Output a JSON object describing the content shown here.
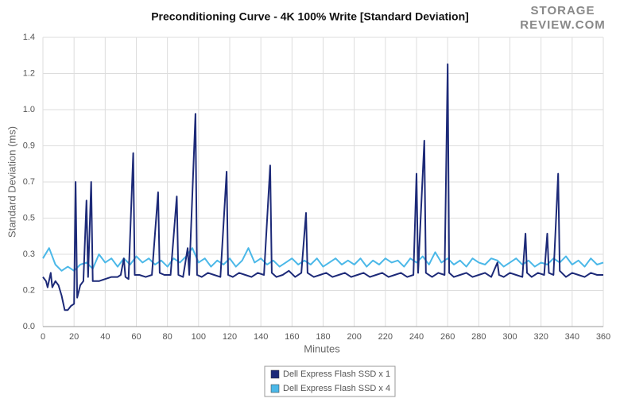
{
  "chart_data": {
    "type": "line",
    "title": "Preconditioning Curve - 4K 100% Write [Standard Deviation]",
    "logo": [
      "STORAGE",
      "REVIEW.COM"
    ],
    "x_label": "Minutes",
    "y_label": "Standard Deviation (ms)",
    "xlim": [
      0,
      360
    ],
    "xticks": [
      0,
      20,
      40,
      60,
      80,
      100,
      120,
      140,
      160,
      180,
      200,
      220,
      240,
      260,
      280,
      300,
      320,
      340,
      360
    ],
    "ylim": [
      0,
      1.4
    ],
    "yticks": [
      {
        "value": 0,
        "label": "0.0"
      },
      {
        "value": 0.175,
        "label": "0.2"
      },
      {
        "value": 0.35,
        "label": "0.3"
      },
      {
        "value": 0.525,
        "label": "0.5"
      },
      {
        "value": 0.7,
        "label": "0.7"
      },
      {
        "value": 0.875,
        "label": "0.9"
      },
      {
        "value": 1.05,
        "label": "1.0"
      },
      {
        "value": 1.225,
        "label": "1.2"
      },
      {
        "value": 1.4,
        "label": "1.4"
      }
    ],
    "grid": true,
    "legend": "bottom",
    "series": [
      {
        "name": "Dell Express Flash SSD x 1",
        "color": "#1d2a78",
        "x": [
          0,
          2,
          3,
          5,
          6,
          8,
          10,
          12,
          14,
          16,
          18,
          20,
          21,
          22,
          24,
          26,
          28,
          29,
          31,
          32,
          36,
          40,
          44,
          48,
          50,
          52,
          53,
          55,
          58,
          59,
          62,
          66,
          70,
          74,
          75,
          78,
          82,
          86,
          87,
          90,
          93,
          94,
          98,
          99,
          102,
          106,
          110,
          114,
          118,
          119,
          122,
          126,
          130,
          134,
          138,
          142,
          146,
          147,
          150,
          154,
          158,
          162,
          166,
          169,
          170,
          174,
          178,
          182,
          186,
          190,
          194,
          198,
          202,
          206,
          210,
          214,
          218,
          222,
          226,
          230,
          234,
          238,
          240,
          241,
          245,
          246,
          250,
          254,
          258,
          260,
          261,
          264,
          268,
          272,
          276,
          280,
          284,
          288,
          292,
          293,
          296,
          300,
          304,
          308,
          310,
          311,
          314,
          318,
          322,
          324,
          325,
          328,
          331,
          332,
          336,
          340,
          344,
          348,
          352,
          356,
          360
        ],
        "values": [
          0.24,
          0.22,
          0.19,
          0.26,
          0.19,
          0.22,
          0.2,
          0.15,
          0.08,
          0.08,
          0.1,
          0.11,
          0.7,
          0.14,
          0.2,
          0.22,
          0.61,
          0.24,
          0.7,
          0.22,
          0.22,
          0.23,
          0.24,
          0.24,
          0.25,
          0.33,
          0.24,
          0.23,
          0.84,
          0.25,
          0.25,
          0.24,
          0.25,
          0.65,
          0.26,
          0.25,
          0.25,
          0.63,
          0.25,
          0.24,
          0.38,
          0.25,
          1.03,
          0.25,
          0.24,
          0.26,
          0.25,
          0.24,
          0.75,
          0.25,
          0.24,
          0.26,
          0.25,
          0.24,
          0.26,
          0.25,
          0.78,
          0.26,
          0.24,
          0.25,
          0.27,
          0.24,
          0.26,
          0.55,
          0.26,
          0.24,
          0.25,
          0.26,
          0.24,
          0.25,
          0.26,
          0.24,
          0.25,
          0.26,
          0.24,
          0.25,
          0.26,
          0.24,
          0.25,
          0.26,
          0.24,
          0.25,
          0.74,
          0.26,
          0.9,
          0.26,
          0.24,
          0.26,
          0.25,
          1.27,
          0.26,
          0.24,
          0.25,
          0.26,
          0.24,
          0.25,
          0.26,
          0.24,
          0.31,
          0.25,
          0.24,
          0.26,
          0.25,
          0.24,
          0.45,
          0.26,
          0.24,
          0.26,
          0.25,
          0.45,
          0.26,
          0.25,
          0.74,
          0.27,
          0.24,
          0.26,
          0.25,
          0.24,
          0.26,
          0.25,
          0.25
        ]
      },
      {
        "name": "Dell Express Flash SSD x 4",
        "color": "#4bb8e8",
        "x": [
          0,
          4,
          8,
          12,
          16,
          20,
          24,
          28,
          32,
          36,
          40,
          44,
          48,
          52,
          56,
          60,
          64,
          68,
          72,
          76,
          80,
          84,
          88,
          92,
          96,
          100,
          104,
          108,
          112,
          116,
          120,
          124,
          128,
          132,
          136,
          140,
          144,
          148,
          152,
          156,
          160,
          164,
          168,
          172,
          176,
          180,
          184,
          188,
          192,
          196,
          200,
          204,
          208,
          212,
          216,
          220,
          224,
          228,
          232,
          236,
          240,
          244,
          248,
          252,
          256,
          260,
          264,
          268,
          272,
          276,
          280,
          284,
          288,
          292,
          296,
          300,
          304,
          308,
          312,
          316,
          320,
          324,
          328,
          332,
          336,
          340,
          344,
          348,
          352,
          356,
          360
        ],
        "values": [
          0.33,
          0.38,
          0.3,
          0.27,
          0.29,
          0.27,
          0.3,
          0.31,
          0.28,
          0.35,
          0.31,
          0.33,
          0.29,
          0.33,
          0.3,
          0.34,
          0.31,
          0.33,
          0.3,
          0.32,
          0.29,
          0.33,
          0.31,
          0.34,
          0.38,
          0.31,
          0.33,
          0.29,
          0.32,
          0.3,
          0.33,
          0.29,
          0.32,
          0.38,
          0.31,
          0.33,
          0.3,
          0.32,
          0.29,
          0.31,
          0.33,
          0.3,
          0.32,
          0.3,
          0.33,
          0.29,
          0.31,
          0.33,
          0.3,
          0.32,
          0.3,
          0.33,
          0.29,
          0.32,
          0.3,
          0.33,
          0.31,
          0.32,
          0.29,
          0.33,
          0.31,
          0.34,
          0.3,
          0.36,
          0.31,
          0.33,
          0.3,
          0.32,
          0.29,
          0.33,
          0.31,
          0.3,
          0.33,
          0.32,
          0.29,
          0.31,
          0.33,
          0.3,
          0.32,
          0.29,
          0.31,
          0.3,
          0.33,
          0.31,
          0.34,
          0.3,
          0.32,
          0.29,
          0.33,
          0.3,
          0.31
        ]
      }
    ]
  }
}
